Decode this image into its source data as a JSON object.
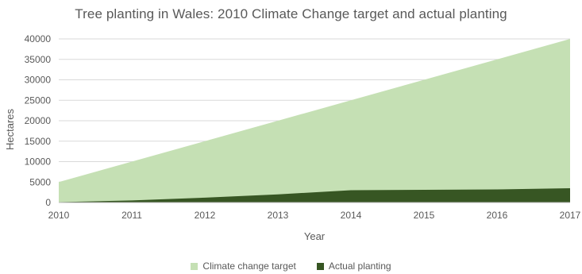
{
  "chart_data": {
    "type": "area",
    "title": "Tree planting in Wales: 2010 Climate Change target and actual planting",
    "xlabel": "Year",
    "ylabel": "Hectares",
    "x": [
      "2010",
      "2011",
      "2012",
      "2013",
      "2014",
      "2015",
      "2016",
      "2017"
    ],
    "y_ticks": [
      "0",
      "5000",
      "10000",
      "15000",
      "20000",
      "25000",
      "30000",
      "35000",
      "40000"
    ],
    "ylim": [
      0,
      40000
    ],
    "grid": true,
    "legend_position": "bottom",
    "series": [
      {
        "name": "Climate change target",
        "values": [
          5000,
          10000,
          15000,
          20000,
          25000,
          30000,
          35000,
          40000
        ],
        "color": "#c5e0b4"
      },
      {
        "name": "Actual planting",
        "values": [
          100,
          500,
          1200,
          2000,
          3000,
          3100,
          3200,
          3500
        ],
        "color": "#375623"
      }
    ]
  }
}
